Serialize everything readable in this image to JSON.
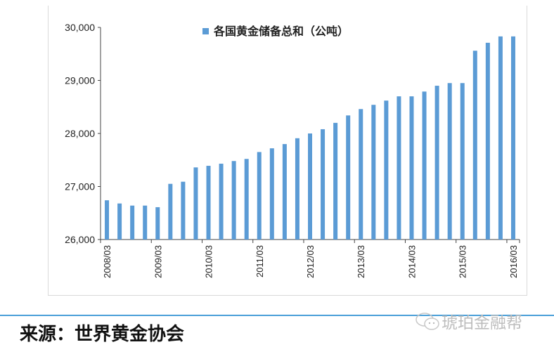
{
  "chart_data": {
    "type": "bar",
    "title": "",
    "legend": {
      "label": "各国黄金储备总和（公吨）",
      "placement": "top"
    },
    "series_color": "#5b9bd5",
    "ylim": [
      26000,
      30000
    ],
    "yticks": [
      "26,000",
      "27,000",
      "28,000",
      "29,000",
      "30,000"
    ],
    "ytick_values": [
      26000,
      27000,
      28000,
      29000,
      30000
    ],
    "xtick_labels": [
      "2008/03",
      "2009/03",
      "2010/03",
      "2011/03",
      "2012/03",
      "2013/03",
      "2014/03",
      "2015/03",
      "2016/03"
    ],
    "categories": [
      "2008/03",
      "2008/06",
      "2008/09",
      "2008/12",
      "2009/03",
      "2009/06",
      "2009/09",
      "2009/12",
      "2010/03",
      "2010/06",
      "2010/09",
      "2010/12",
      "2011/03",
      "2011/06",
      "2011/09",
      "2011/12",
      "2012/03",
      "2012/06",
      "2012/09",
      "2012/12",
      "2013/03",
      "2013/06",
      "2013/09",
      "2013/12",
      "2014/03",
      "2014/06",
      "2014/09",
      "2014/12",
      "2015/03",
      "2015/06",
      "2015/09",
      "2015/12",
      "2016/03"
    ],
    "values": [
      26740,
      26680,
      26640,
      26640,
      26610,
      27050,
      27090,
      27360,
      27390,
      27430,
      27480,
      27520,
      27650,
      27720,
      27800,
      27910,
      28000,
      28080,
      28200,
      28340,
      28460,
      28540,
      28620,
      28700,
      28700,
      28790,
      28900,
      28950,
      28950,
      29560,
      29710,
      29830,
      29830
    ]
  },
  "footer": {
    "source": "来源：世界黄金协会",
    "watermark": "琥珀金融帮"
  }
}
